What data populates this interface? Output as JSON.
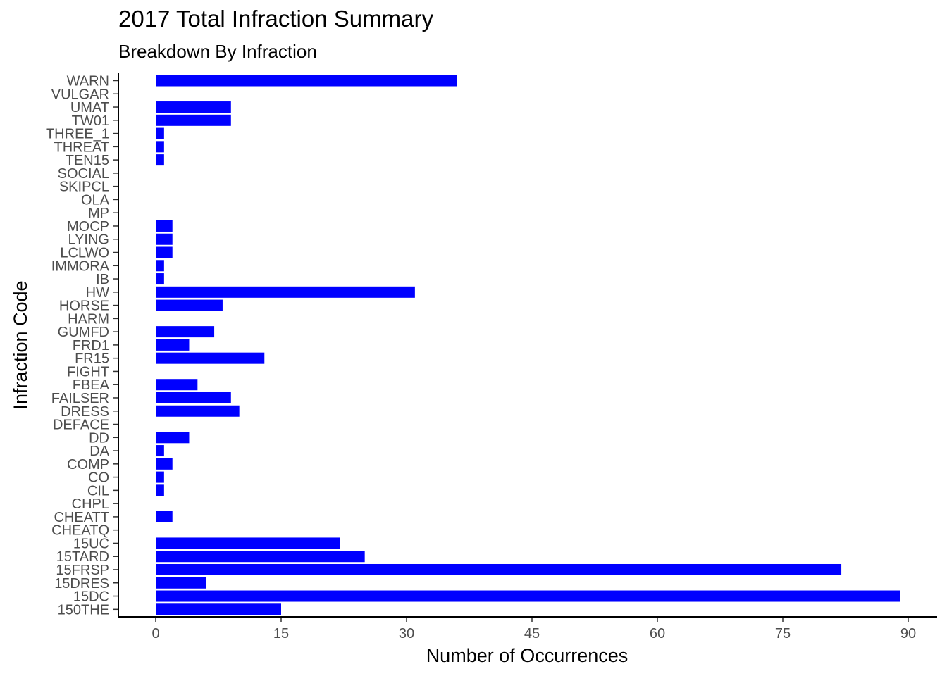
{
  "chart_data": {
    "type": "bar",
    "orientation": "horizontal",
    "title": "2017 Total Infraction Summary",
    "subtitle": "Breakdown By Infraction",
    "xlabel": "Number of Occurrences",
    "ylabel": "Infraction Code",
    "xlim": [
      0,
      90
    ],
    "xticks": [
      0,
      15,
      30,
      45,
      60,
      75,
      90
    ],
    "grid": false,
    "bar_color": "#0000FF",
    "categories": [
      "150THE",
      "15DC",
      "15DRES",
      "15FRSP",
      "15TARD",
      "15UC",
      "CHEATQ",
      "CHEATT",
      "CHPL",
      "CIL",
      "CO",
      "COMP",
      "DA",
      "DD",
      "DEFACE",
      "DRESS",
      "FAILSER",
      "FBEA",
      "FIGHT",
      "FR15",
      "FRD1",
      "GUMFD",
      "HARM",
      "HORSE",
      "HW",
      "IB",
      "IMMORA",
      "LCLWO",
      "LYING",
      "MOCP",
      "MP",
      "OLA",
      "SKIPCL",
      "SOCIAL",
      "TEN15",
      "THREAT",
      "THREE_1",
      "TW01",
      "UMAT",
      "VULGAR",
      "WARN"
    ],
    "values": [
      15,
      89,
      6,
      82,
      25,
      22,
      0,
      2,
      0,
      1,
      1,
      2,
      1,
      4,
      0,
      10,
      9,
      5,
      0,
      13,
      4,
      7,
      0,
      8,
      31,
      1,
      1,
      2,
      2,
      2,
      0,
      0,
      0,
      0,
      1,
      1,
      1,
      9,
      9,
      0,
      36
    ]
  }
}
